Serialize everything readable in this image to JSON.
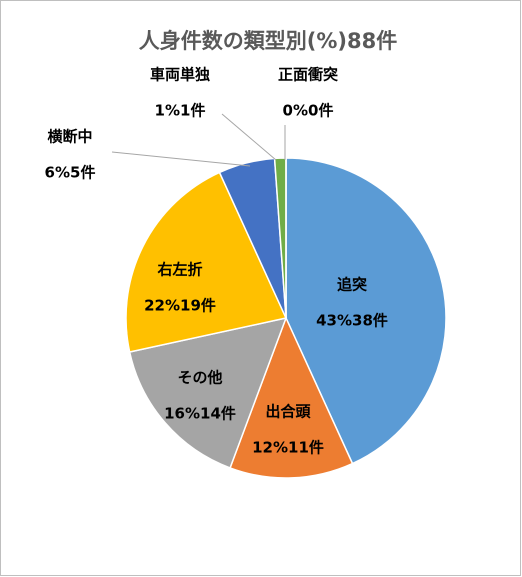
{
  "chart_data": {
    "type": "pie",
    "title": "人身件数の類型別(%)88件",
    "categories": [
      "追突",
      "出合頭",
      "その他",
      "右左折",
      "横断中",
      "車両単独",
      "正面衝突"
    ],
    "values": [
      38,
      11,
      14,
      19,
      5,
      1,
      0
    ],
    "value_labels": [
      "43%38件",
      "12%11件",
      "16%14件",
      "22%19件",
      "6%5件",
      "1%1件",
      "0%0件"
    ],
    "colors": [
      "#5b9bd5",
      "#ed7d31",
      "#a5a5a5",
      "#ffc000",
      "#4472c4",
      "#70ad47",
      "#255e91"
    ]
  }
}
